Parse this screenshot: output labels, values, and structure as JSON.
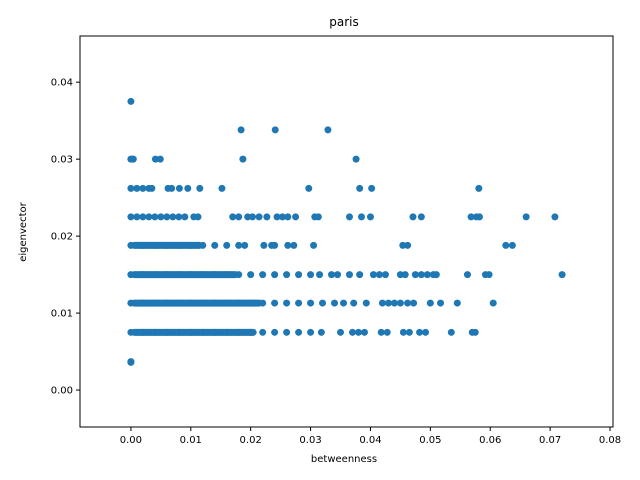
{
  "chart_data": {
    "type": "scatter",
    "title": "paris",
    "xlabel": "betweenness",
    "ylabel": "eigenvector",
    "xlim": [
      -0.0085,
      0.0805
    ],
    "ylim": [
      -0.0048,
      0.046
    ],
    "xticks": [
      "0.00",
      "0.01",
      "0.02",
      "0.03",
      "0.04",
      "0.05",
      "0.06",
      "0.07",
      "0.08"
    ],
    "yticks": [
      "0.00",
      "0.01",
      "0.02",
      "0.03",
      "0.04"
    ],
    "grid": false,
    "color": "#1f77b4",
    "series": [
      {
        "points": [
          [
            0.0,
            0.0375
          ],
          [
            0.0,
            0.0037
          ],
          [
            0.0,
            0.0036
          ],
          [
            0.0,
            0.03
          ],
          [
            0.0002,
            0.03
          ],
          [
            0.0004,
            0.03
          ],
          [
            0.0041,
            0.03
          ],
          [
            0.0049,
            0.03
          ],
          [
            0.0187,
            0.03
          ],
          [
            0.0376,
            0.03
          ],
          [
            0.0184,
            0.0338
          ],
          [
            0.0241,
            0.0338
          ],
          [
            0.0329,
            0.0338
          ],
          [
            0.0,
            0.0262
          ],
          [
            0.001,
            0.0262
          ],
          [
            0.002,
            0.0262
          ],
          [
            0.003,
            0.0262
          ],
          [
            0.0035,
            0.0262
          ],
          [
            0.0062,
            0.0262
          ],
          [
            0.0068,
            0.0262
          ],
          [
            0.0081,
            0.0262
          ],
          [
            0.0095,
            0.0262
          ],
          [
            0.0115,
            0.0262
          ],
          [
            0.0152,
            0.0262
          ],
          [
            0.0297,
            0.0262
          ],
          [
            0.0382,
            0.0262
          ],
          [
            0.0402,
            0.0262
          ],
          [
            0.0581,
            0.0262
          ],
          [
            0.0,
            0.0225
          ],
          [
            0.001,
            0.0225
          ],
          [
            0.002,
            0.0225
          ],
          [
            0.003,
            0.0225
          ],
          [
            0.004,
            0.0225
          ],
          [
            0.005,
            0.0225
          ],
          [
            0.006,
            0.0225
          ],
          [
            0.007,
            0.0225
          ],
          [
            0.008,
            0.0225
          ],
          [
            0.009,
            0.0225
          ],
          [
            0.0105,
            0.0225
          ],
          [
            0.0112,
            0.0225
          ],
          [
            0.017,
            0.0225
          ],
          [
            0.018,
            0.0225
          ],
          [
            0.0195,
            0.0225
          ],
          [
            0.0203,
            0.0225
          ],
          [
            0.0214,
            0.0225
          ],
          [
            0.0227,
            0.0225
          ],
          [
            0.0244,
            0.0225
          ],
          [
            0.0253,
            0.0225
          ],
          [
            0.0262,
            0.0225
          ],
          [
            0.0275,
            0.0225
          ],
          [
            0.0307,
            0.0225
          ],
          [
            0.0313,
            0.0225
          ],
          [
            0.0365,
            0.0225
          ],
          [
            0.0385,
            0.0225
          ],
          [
            0.04,
            0.0225
          ],
          [
            0.0471,
            0.0225
          ],
          [
            0.0485,
            0.0225
          ],
          [
            0.0568,
            0.0225
          ],
          [
            0.0577,
            0.0225
          ],
          [
            0.0582,
            0.0225
          ],
          [
            0.066,
            0.0225
          ],
          [
            0.0708,
            0.0225
          ],
          [
            0.0,
            0.0188
          ],
          [
            0.002,
            0.0188
          ],
          [
            0.004,
            0.0188
          ],
          [
            0.006,
            0.0188
          ],
          [
            0.008,
            0.0188
          ],
          [
            0.01,
            0.0188
          ],
          [
            0.012,
            0.0188
          ],
          [
            0.014,
            0.0188
          ],
          [
            0.016,
            0.0188
          ],
          [
            0.018,
            0.0188
          ],
          [
            0.019,
            0.0188
          ],
          [
            0.0222,
            0.0188
          ],
          [
            0.0235,
            0.0188
          ],
          [
            0.024,
            0.0188
          ],
          [
            0.0262,
            0.0188
          ],
          [
            0.0272,
            0.0188
          ],
          [
            0.0305,
            0.0188
          ],
          [
            0.0454,
            0.0188
          ],
          [
            0.0462,
            0.0188
          ],
          [
            0.0626,
            0.0188
          ],
          [
            0.0637,
            0.0188
          ],
          [
            0.0,
            0.015
          ],
          [
            0.002,
            0.015
          ],
          [
            0.004,
            0.015
          ],
          [
            0.006,
            0.015
          ],
          [
            0.008,
            0.015
          ],
          [
            0.01,
            0.015
          ],
          [
            0.012,
            0.015
          ],
          [
            0.014,
            0.015
          ],
          [
            0.016,
            0.015
          ],
          [
            0.018,
            0.015
          ],
          [
            0.02,
            0.015
          ],
          [
            0.022,
            0.015
          ],
          [
            0.024,
            0.015
          ],
          [
            0.026,
            0.015
          ],
          [
            0.028,
            0.015
          ],
          [
            0.03,
            0.015
          ],
          [
            0.0315,
            0.015
          ],
          [
            0.0335,
            0.015
          ],
          [
            0.0345,
            0.015
          ],
          [
            0.0365,
            0.015
          ],
          [
            0.0382,
            0.015
          ],
          [
            0.0405,
            0.015
          ],
          [
            0.0415,
            0.015
          ],
          [
            0.0425,
            0.015
          ],
          [
            0.045,
            0.015
          ],
          [
            0.0458,
            0.015
          ],
          [
            0.0475,
            0.015
          ],
          [
            0.0485,
            0.015
          ],
          [
            0.0495,
            0.015
          ],
          [
            0.0505,
            0.015
          ],
          [
            0.051,
            0.015
          ],
          [
            0.0562,
            0.015
          ],
          [
            0.0592,
            0.015
          ],
          [
            0.0598,
            0.015
          ],
          [
            0.072,
            0.015
          ],
          [
            0.0,
            0.0113
          ],
          [
            0.002,
            0.0113
          ],
          [
            0.004,
            0.0113
          ],
          [
            0.006,
            0.0113
          ],
          [
            0.008,
            0.0113
          ],
          [
            0.01,
            0.0113
          ],
          [
            0.012,
            0.0113
          ],
          [
            0.014,
            0.0113
          ],
          [
            0.016,
            0.0113
          ],
          [
            0.018,
            0.0113
          ],
          [
            0.02,
            0.0113
          ],
          [
            0.022,
            0.0113
          ],
          [
            0.024,
            0.0113
          ],
          [
            0.026,
            0.0113
          ],
          [
            0.028,
            0.0113
          ],
          [
            0.03,
            0.0113
          ],
          [
            0.032,
            0.0113
          ],
          [
            0.034,
            0.0113
          ],
          [
            0.0355,
            0.0113
          ],
          [
            0.0372,
            0.0113
          ],
          [
            0.0393,
            0.0113
          ],
          [
            0.042,
            0.0113
          ],
          [
            0.043,
            0.0113
          ],
          [
            0.044,
            0.0113
          ],
          [
            0.045,
            0.0113
          ],
          [
            0.0462,
            0.0113
          ],
          [
            0.0472,
            0.0113
          ],
          [
            0.05,
            0.0113
          ],
          [
            0.0517,
            0.0113
          ],
          [
            0.0545,
            0.0113
          ],
          [
            0.0605,
            0.0113
          ],
          [
            0.0,
            0.0075
          ],
          [
            0.002,
            0.0075
          ],
          [
            0.004,
            0.0075
          ],
          [
            0.006,
            0.0075
          ],
          [
            0.008,
            0.0075
          ],
          [
            0.01,
            0.0075
          ],
          [
            0.012,
            0.0075
          ],
          [
            0.014,
            0.0075
          ],
          [
            0.016,
            0.0075
          ],
          [
            0.018,
            0.0075
          ],
          [
            0.02,
            0.0075
          ],
          [
            0.022,
            0.0075
          ],
          [
            0.024,
            0.0075
          ],
          [
            0.026,
            0.0075
          ],
          [
            0.028,
            0.0075
          ],
          [
            0.03,
            0.0075
          ],
          [
            0.0318,
            0.0075
          ],
          [
            0.035,
            0.0075
          ],
          [
            0.037,
            0.0075
          ],
          [
            0.038,
            0.0075
          ],
          [
            0.039,
            0.0075
          ],
          [
            0.0418,
            0.0075
          ],
          [
            0.0428,
            0.0075
          ],
          [
            0.0455,
            0.0075
          ],
          [
            0.0465,
            0.0075
          ],
          [
            0.0482,
            0.0075
          ],
          [
            0.0492,
            0.0075
          ],
          [
            0.0535,
            0.0075
          ],
          [
            0.057,
            0.0075
          ],
          [
            0.0575,
            0.0075
          ]
        ]
      }
    ]
  }
}
